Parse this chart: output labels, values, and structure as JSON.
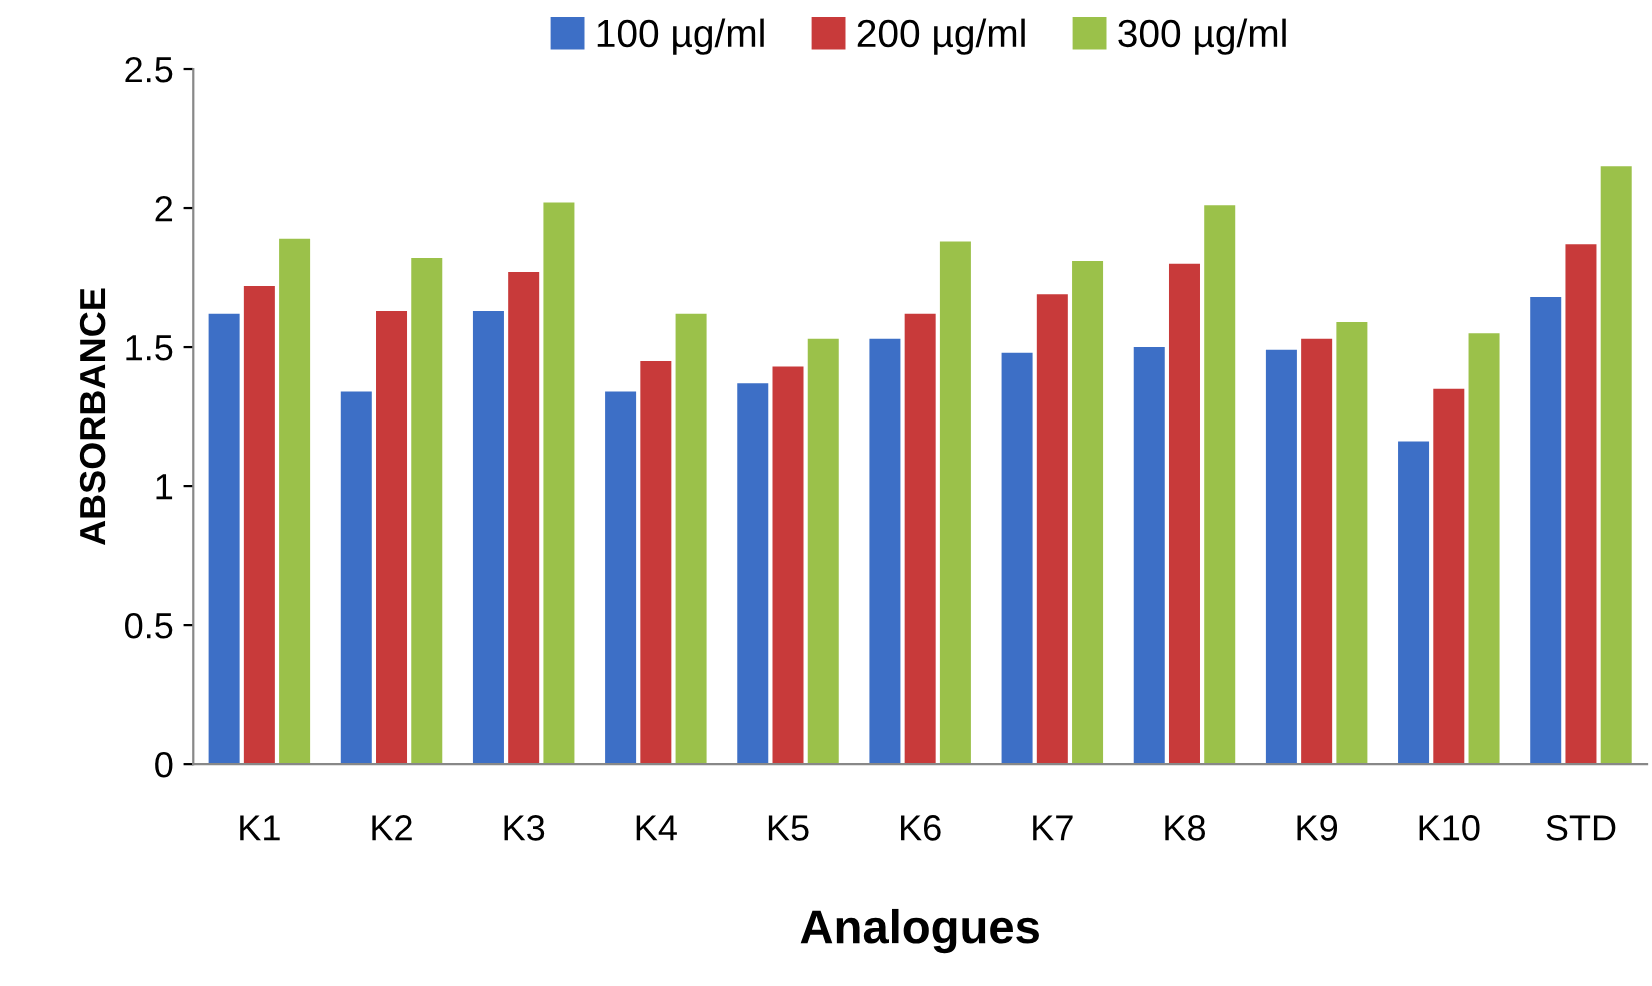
{
  "chart_data": {
    "type": "bar",
    "xlabel": "Analogues",
    "ylabel": "ABSORBANCE",
    "categories": [
      "K1",
      "K2",
      "K3",
      "K4",
      "K5",
      "K6",
      "K7",
      "K8",
      "K9",
      "K10",
      "STD"
    ],
    "series": [
      {
        "name": "100 µg/ml",
        "color": "#3d6fc6",
        "values": [
          1.62,
          1.34,
          1.63,
          1.34,
          1.37,
          1.53,
          1.48,
          1.5,
          1.49,
          1.16,
          1.68
        ]
      },
      {
        "name": "200 µg/ml",
        "color": "#c83a3a",
        "values": [
          1.72,
          1.63,
          1.77,
          1.45,
          1.43,
          1.62,
          1.69,
          1.8,
          1.53,
          1.35,
          1.87
        ]
      },
      {
        "name": "300 µg/ml",
        "color": "#9bc14a",
        "values": [
          1.89,
          1.82,
          2.02,
          1.62,
          1.53,
          1.88,
          1.81,
          2.01,
          1.59,
          1.55,
          2.15
        ]
      }
    ],
    "ylim": [
      0,
      2.5
    ],
    "yticks": [
      0,
      0.5,
      1,
      1.5,
      2,
      2.5
    ],
    "grid": false,
    "legend": "top"
  }
}
